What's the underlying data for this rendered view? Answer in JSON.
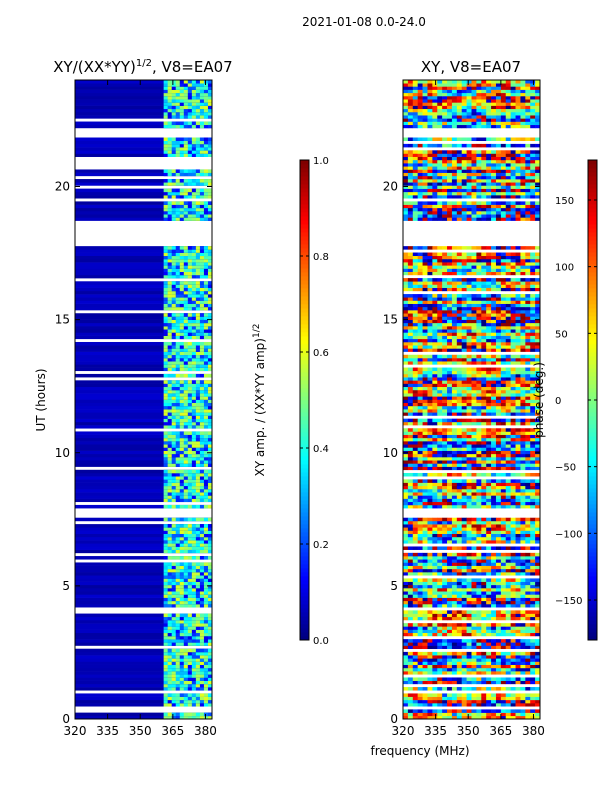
{
  "figure_title": "2021-01-08 0.0-24.0",
  "shared_xlabel": "frequency (MHz)",
  "chart_data": [
    {
      "type": "heatmap",
      "title_main": "XY/(XX*YY)",
      "title_sup": "1/2",
      "title_rest": ", V8=EA07",
      "xlabel": "",
      "ylabel": "UT (hours)",
      "xlim": [
        320,
        383
      ],
      "ylim": [
        0,
        24
      ],
      "x_ticks": [
        320,
        335,
        350,
        365,
        380
      ],
      "y_ticks": [
        0,
        5,
        10,
        15,
        20
      ],
      "colorbar": {
        "label": "XY amp. / (XX*YY amp)",
        "label_sup": "1/2",
        "range": [
          0.0,
          1.0
        ],
        "ticks": [
          "0.0",
          "0.2",
          "0.4",
          "0.6",
          "0.8",
          "1.0"
        ],
        "tick_values": [
          0.0,
          0.2,
          0.4,
          0.6,
          0.8,
          1.0
        ],
        "colormap": "jet"
      },
      "bright_band_mhz": [
        360,
        383
      ],
      "dominant_value": 0.05,
      "band_value_range": [
        0.3,
        0.6
      ],
      "gap_hours": [
        [
          0.2,
          0.5
        ],
        [
          7.6,
          7.8
        ],
        [
          17.9,
          18.7
        ],
        [
          19.4,
          19.6
        ],
        [
          21.9,
          22.2
        ]
      ]
    },
    {
      "type": "heatmap",
      "title": "XY, V8=EA07",
      "xlabel": "",
      "ylabel": "",
      "xlim": [
        320,
        383
      ],
      "ylim": [
        0,
        24
      ],
      "x_ticks": [
        320,
        335,
        350,
        365,
        380
      ],
      "y_ticks": [
        0,
        5,
        10,
        15,
        20
      ],
      "colorbar": {
        "label": "phase (deg.)",
        "range": [
          -180,
          180
        ],
        "ticks": [
          "−150",
          "−100",
          "−50",
          "0",
          "50",
          "100",
          "150"
        ],
        "tick_values": [
          -150,
          -100,
          -50,
          0,
          50,
          100,
          150
        ],
        "colormap": "jet"
      },
      "gap_hours": [
        [
          7.6,
          7.8
        ],
        [
          17.9,
          18.7
        ],
        [
          19.4,
          19.6
        ],
        [
          21.9,
          22.2
        ]
      ]
    }
  ]
}
